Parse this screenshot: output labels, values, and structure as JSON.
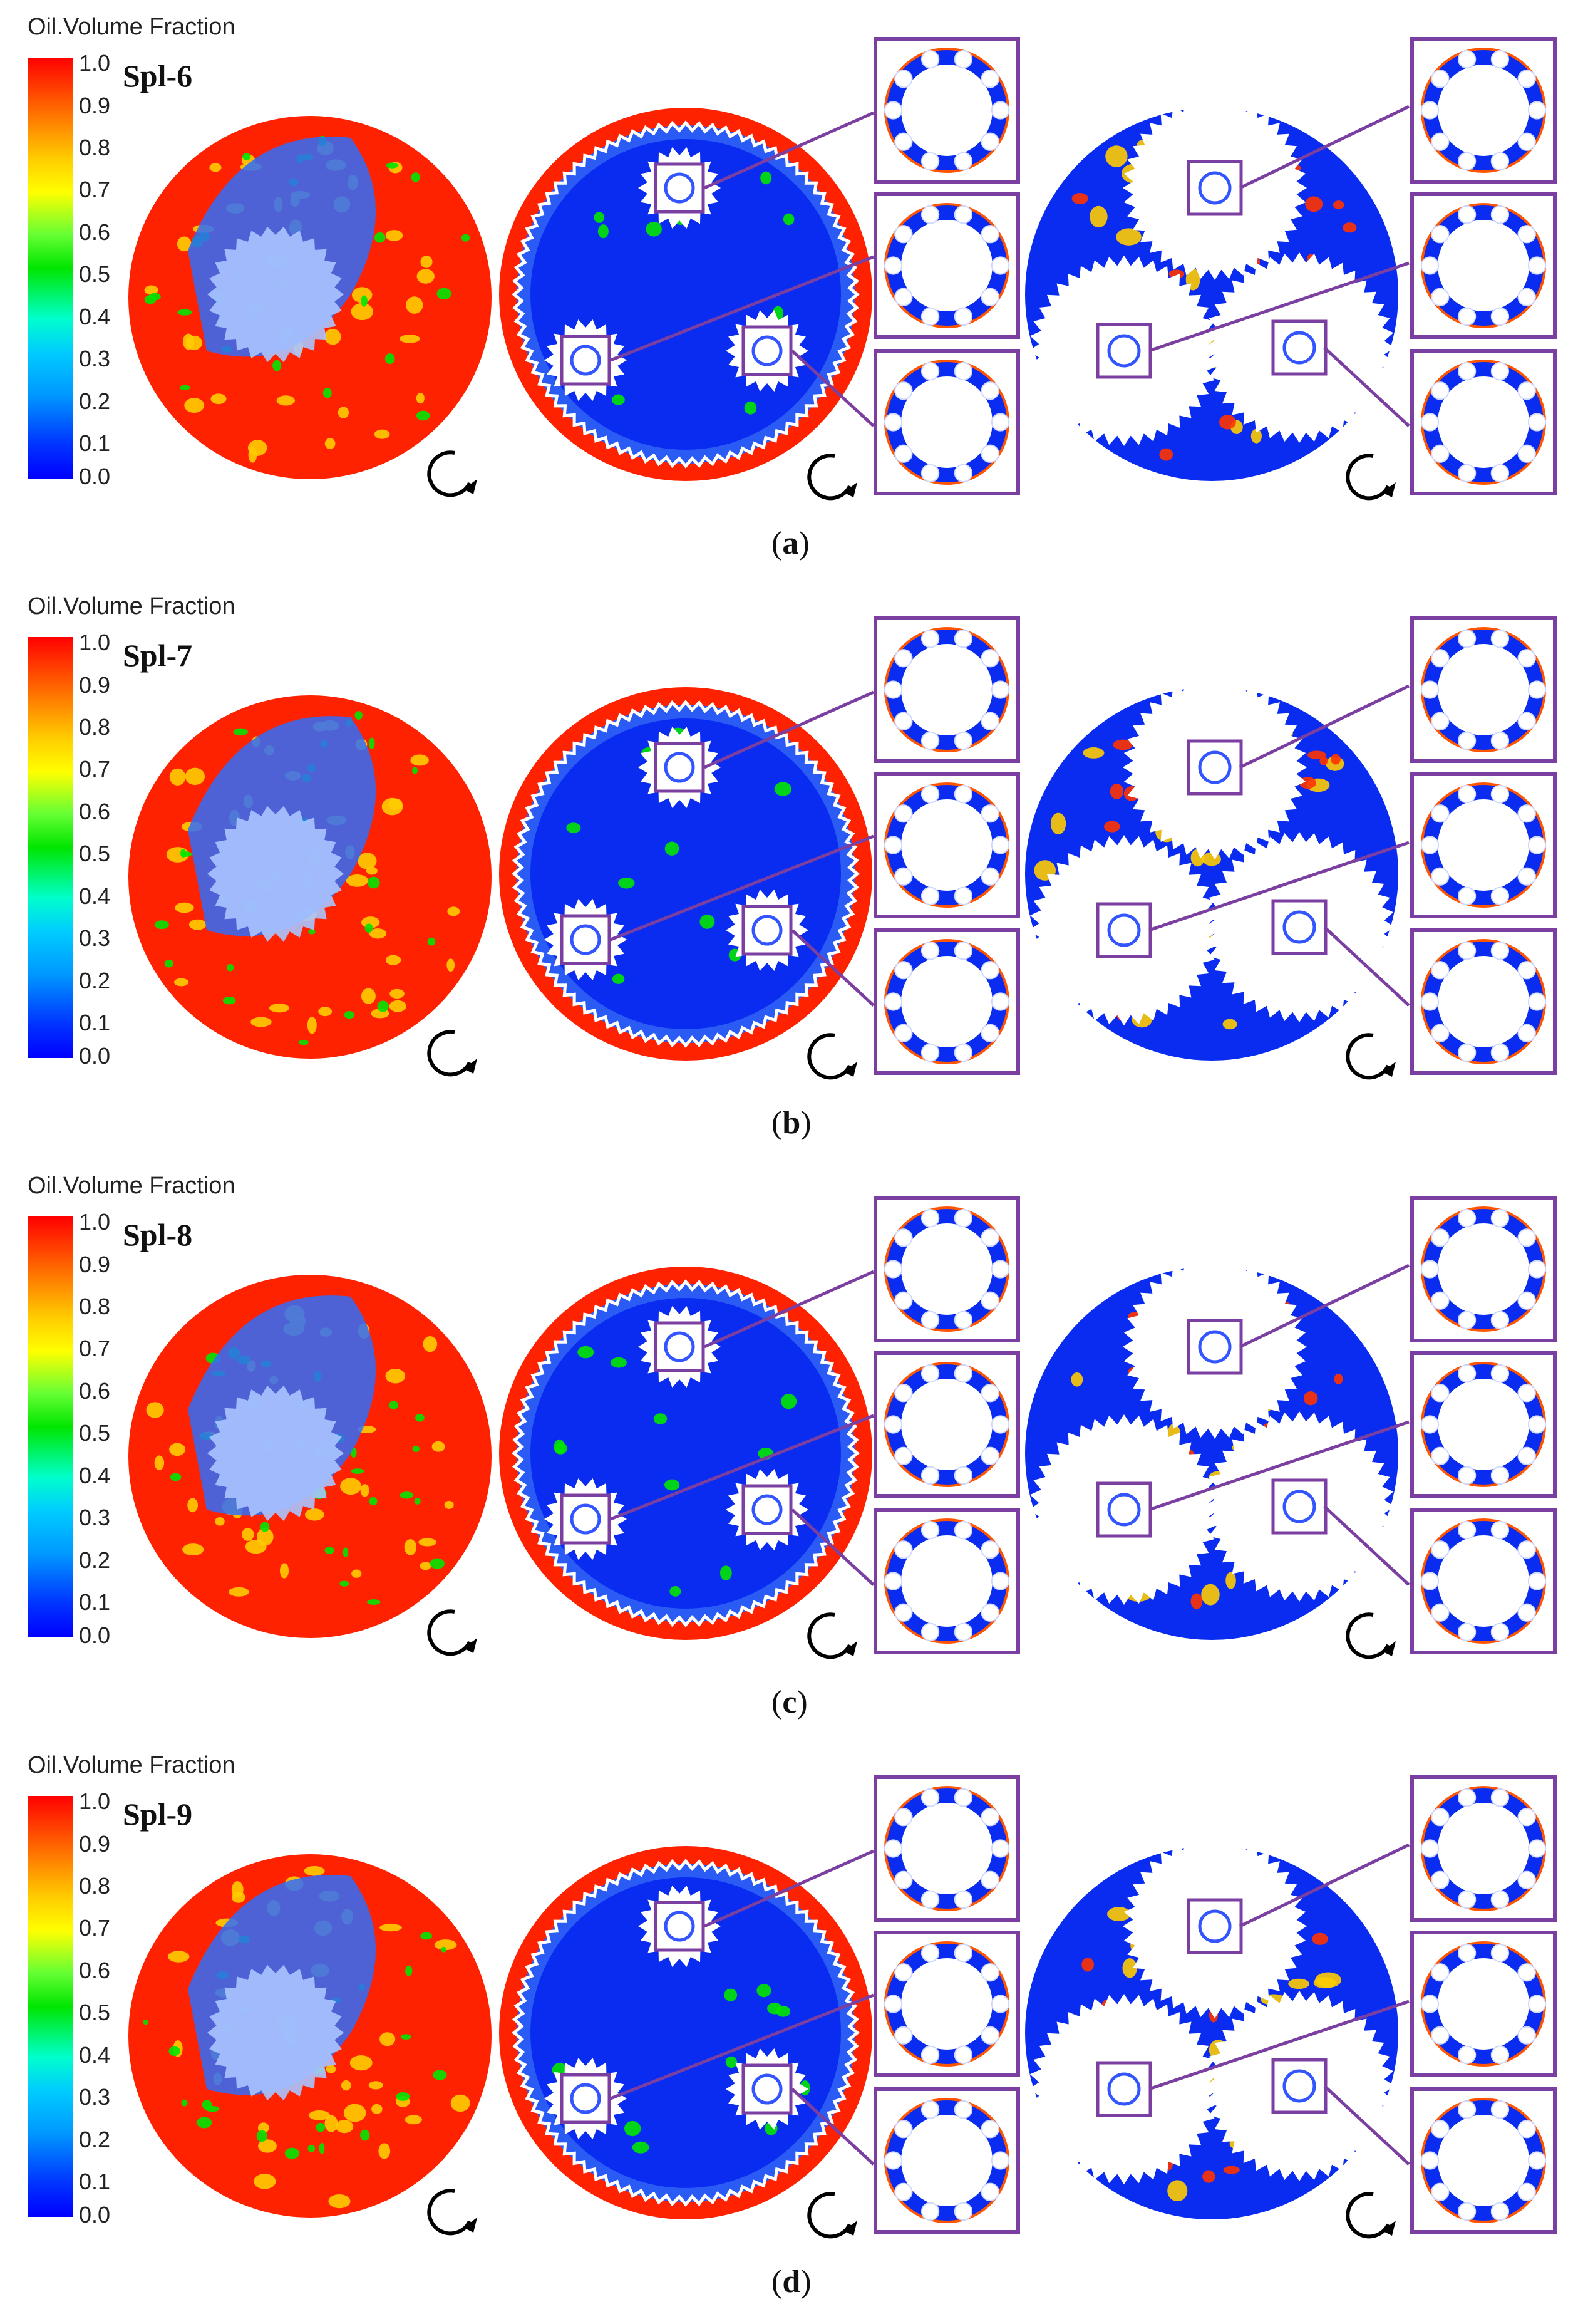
{
  "colorbar": {
    "title": "Oil.Volume Fraction",
    "ticks": [
      "1.0",
      "0.9",
      "0.8",
      "0.7",
      "0.6",
      "0.5",
      "0.4",
      "0.3",
      "0.2",
      "0.1",
      "0.0"
    ],
    "colors": [
      "#ff0000",
      "#ff6600",
      "#ffcc00",
      "#ffff00",
      "#66ff33",
      "#00e600",
      "#00ffcc",
      "#00ccff",
      "#0099ff",
      "#0033ff",
      "#0000ff"
    ]
  },
  "panels": [
    {
      "id": "a",
      "case": "Spl-6",
      "label": "a"
    },
    {
      "id": "b",
      "case": "Spl-7",
      "label": "b"
    },
    {
      "id": "c",
      "case": "Spl-8",
      "label": "c"
    },
    {
      "id": "d",
      "case": "Spl-9",
      "label": "d"
    }
  ],
  "colors": {
    "oil_high": "#ff2200",
    "oil_low": "#0a2cf0",
    "callout": "#7a3fa0",
    "gear": "#ffffff",
    "rotation_arrow": "#000000"
  },
  "icons": {
    "rotation": "rotation-arrow-icon",
    "bearing": "bearing-icon"
  }
}
